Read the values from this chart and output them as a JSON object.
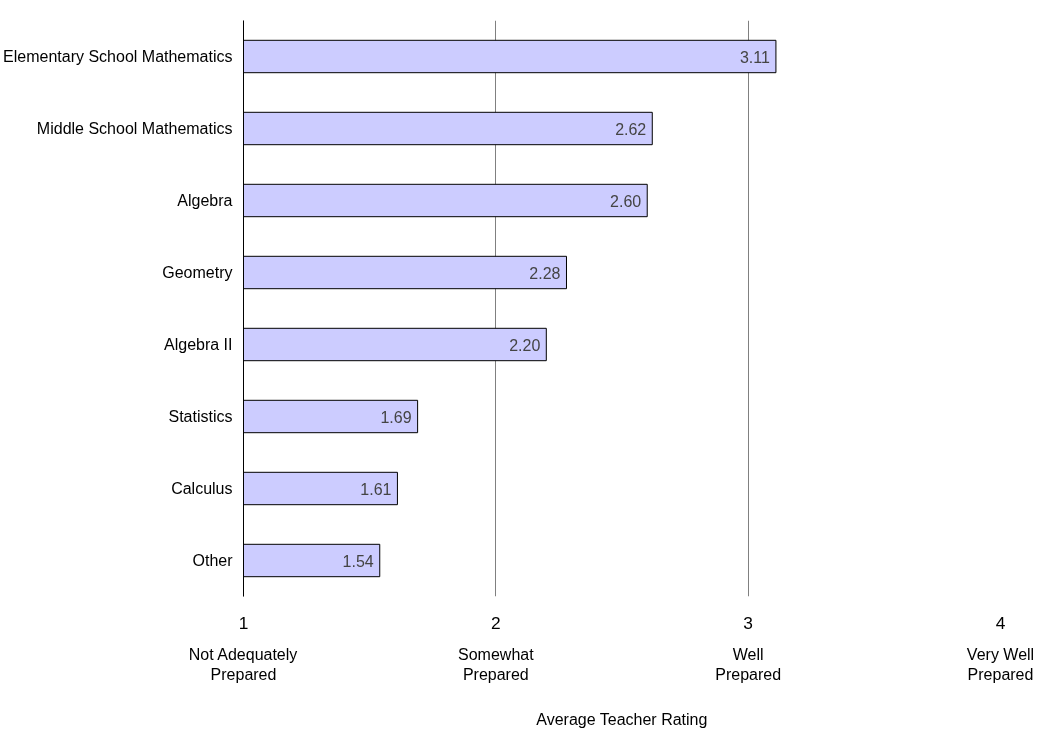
{
  "chart_data": {
    "type": "bar",
    "orientation": "horizontal",
    "xlabel": "Average Teacher Rating",
    "categories": [
      "Elementary School Mathematics",
      "Middle School Mathematics",
      "Algebra",
      "Geometry",
      "Algebra II",
      "Statistics",
      "Calculus",
      "Other"
    ],
    "values": [
      3.11,
      2.62,
      2.6,
      2.28,
      2.2,
      1.69,
      1.61,
      1.54
    ],
    "value_labels": [
      "3.11",
      "2.62",
      "2.60",
      "2.28",
      "2.20",
      "1.69",
      "1.61",
      "1.54"
    ],
    "color": "#ccccff",
    "xlim": [
      1,
      4
    ],
    "xticks": [
      1,
      2,
      3,
      4
    ],
    "annotations": [
      "Not Adequately\nPrepared",
      "Somewhat\nPrepared",
      "Well\nPrepared",
      "Very Well\nPrepared"
    ],
    "grid": "x"
  }
}
